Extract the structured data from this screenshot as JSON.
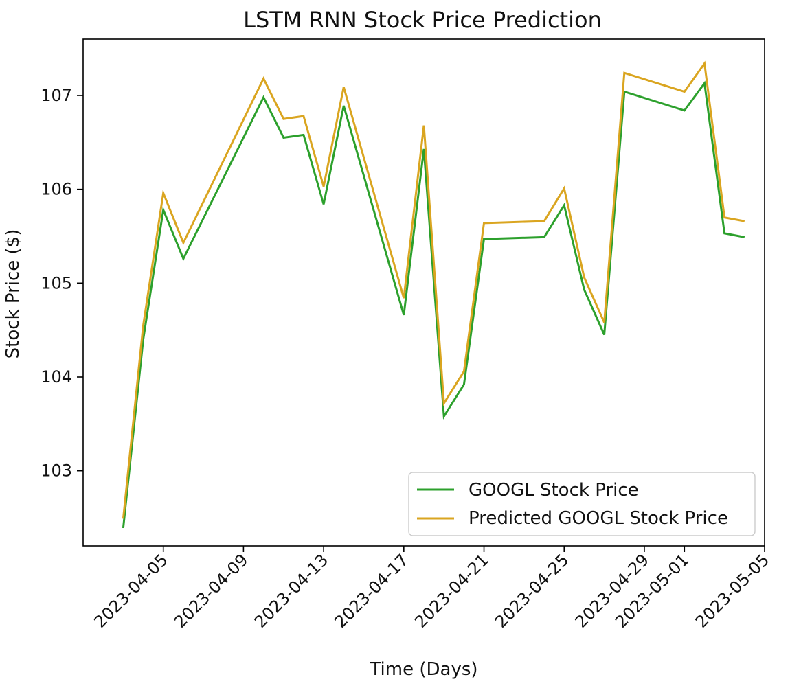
{
  "chart_data": {
    "type": "line",
    "title": "LSTM RNN Stock Price Prediction",
    "xlabel": "Time (Days)",
    "ylabel": "Stock Price ($)",
    "xlim": [
      "2023-04-01",
      "2023-05-05"
    ],
    "ylim": [
      102.2,
      107.6
    ],
    "x_ticks": [
      "2023-04-05",
      "2023-04-09",
      "2023-04-13",
      "2023-04-17",
      "2023-04-21",
      "2023-04-25",
      "2023-04-29",
      "2023-05-01",
      "2023-05-05"
    ],
    "y_ticks": [
      103,
      104,
      105,
      106,
      107
    ],
    "grid": false,
    "legend_position": "lower-right",
    "x": [
      "2023-04-03",
      "2023-04-04",
      "2023-04-05",
      "2023-04-06",
      "2023-04-10",
      "2023-04-11",
      "2023-04-12",
      "2023-04-13",
      "2023-04-14",
      "2023-04-17",
      "2023-04-18",
      "2023-04-19",
      "2023-04-20",
      "2023-04-21",
      "2023-04-24",
      "2023-04-25",
      "2023-04-26",
      "2023-04-27",
      "2023-04-28",
      "2023-05-01",
      "2023-05-02",
      "2023-05-03",
      "2023-05-04"
    ],
    "series": [
      {
        "name": "GOOGL Stock Price",
        "color": "#2ca02c",
        "values": [
          102.39,
          104.4,
          105.78,
          105.26,
          106.98,
          106.55,
          106.58,
          105.84,
          106.89,
          104.66,
          106.43,
          103.58,
          103.92,
          105.47,
          105.49,
          105.83,
          104.93,
          104.45,
          107.04,
          106.84,
          107.13,
          105.53,
          105.49
        ]
      },
      {
        "name": "Predicted GOOGL Stock Price",
        "color": "#daa520",
        "values": [
          102.49,
          104.55,
          105.96,
          105.43,
          107.18,
          106.75,
          106.78,
          106.03,
          107.09,
          104.84,
          106.68,
          103.72,
          104.06,
          105.64,
          105.66,
          106.01,
          105.06,
          104.58,
          107.24,
          107.04,
          107.34,
          105.7,
          105.66
        ]
      }
    ]
  }
}
